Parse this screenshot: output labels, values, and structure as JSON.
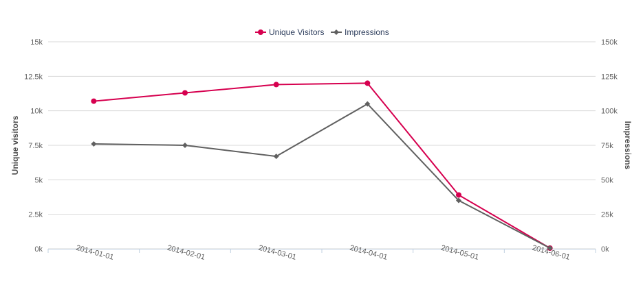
{
  "chart_data": {
    "type": "line",
    "categories": [
      "2014-01-01",
      "2014-02-01",
      "2014-03-01",
      "2014-04-01",
      "2014-05-01",
      "2014-06-01"
    ],
    "series": [
      {
        "name": "Unique Visitors",
        "axis": "left",
        "color": "#d6004f",
        "marker": "circle",
        "values": [
          10700,
          11300,
          11900,
          12000,
          3900,
          50
        ]
      },
      {
        "name": "Impressions",
        "axis": "right",
        "color": "#606060",
        "marker": "diamond",
        "values": [
          76000,
          75000,
          67000,
          105000,
          35000,
          500
        ]
      }
    ],
    "yAxisLeft": {
      "title": "Unique visitors",
      "min": 0,
      "max": 15000,
      "ticks": [
        0,
        2500,
        5000,
        7500,
        10000,
        12500,
        15000
      ],
      "tickLabels": [
        "0k",
        "2.5k",
        "5k",
        "7.5k",
        "10k",
        "12.5k",
        "15k"
      ]
    },
    "yAxisRight": {
      "title": "Impressions",
      "min": 0,
      "max": 150000,
      "ticks": [
        0,
        25000,
        50000,
        75000,
        100000,
        125000,
        150000
      ],
      "tickLabels": [
        "0k",
        "25k",
        "50k",
        "75k",
        "100k",
        "125k",
        "150k"
      ]
    },
    "grid": true,
    "legend": "top-center",
    "colors": {
      "grid": "#d8d8d8",
      "axis": "#c0d0e0"
    }
  }
}
